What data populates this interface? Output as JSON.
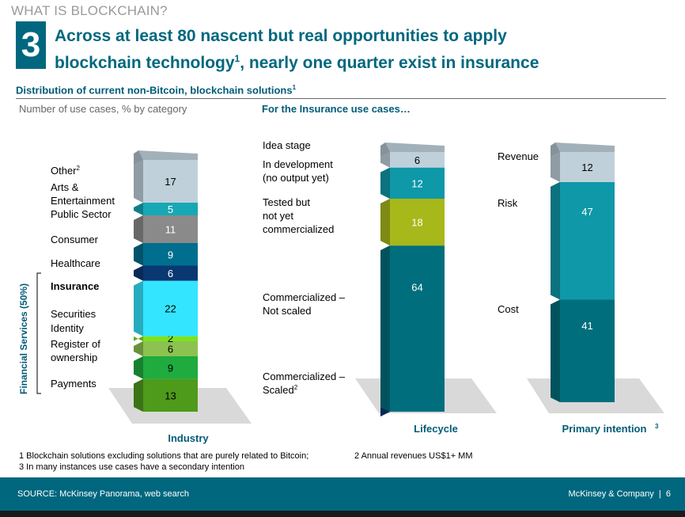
{
  "header": {
    "kicker": "WHAT IS BLOCKCHAIN?",
    "slide_number": "3",
    "title_line1": "Across at least 80 nascent but real opportunities to apply",
    "title_line2_pre": "blockchain technology",
    "title_line2_sup": "1",
    "title_line2_post": ", nearly one quarter exist in insurance"
  },
  "subtitle": {
    "text": "Distribution of current non-Bitcoin, blockchain solutions",
    "sup": "1"
  },
  "captions": {
    "left": "Number of use cases, % by category",
    "right": "For the Insurance use cases…"
  },
  "chart_data": [
    {
      "type": "bar",
      "stacked": true,
      "title": "Industry",
      "unit": "%",
      "series": [
        {
          "name": "Payments",
          "value": 13,
          "color": "#4e9a1b"
        },
        {
          "name": "Register of ownership",
          "value": 9,
          "color": "#1fab3e"
        },
        {
          "name": "Identity",
          "value": 6,
          "color": "#8cc24f"
        },
        {
          "name": "Securities",
          "value": 2,
          "color": "#7fe21f"
        },
        {
          "name": "Insurance",
          "value": 22,
          "color": "#33e5ff",
          "bold": true
        },
        {
          "name": "Healthcare",
          "value": 6,
          "color": "#0a3872"
        },
        {
          "name": "Consumer",
          "value": 9,
          "color": "#006e8e"
        },
        {
          "name": "Public Sector",
          "value": 11,
          "color": "#8a8a8a"
        },
        {
          "name": "Arts & Entertainment",
          "value": 5,
          "color": "#16a8b4"
        },
        {
          "name": "Other",
          "name_sup": "2",
          "value": 17,
          "color": "#bfd0da"
        }
      ],
      "left_labels": [
        {
          "lines": [
            "Other"
          ],
          "sup": "2"
        },
        {
          "lines": [
            "Arts &",
            "Entertainment"
          ]
        },
        {
          "lines": [
            "Public Sector"
          ]
        },
        {
          "lines": [
            "Consumer"
          ]
        },
        {
          "lines": [
            "Healthcare"
          ]
        },
        {
          "lines": [
            "Insurance"
          ],
          "bold": true
        },
        {
          "lines": [
            "Securities"
          ]
        },
        {
          "lines": [
            "Identity"
          ]
        },
        {
          "lines": [
            "Register of",
            "ownership"
          ]
        },
        {
          "lines": [
            "Payments"
          ]
        }
      ],
      "bracket_label": "Financial Services (50%)"
    },
    {
      "type": "bar",
      "stacked": true,
      "title": "Lifecycle",
      "unit": "%",
      "series": [
        {
          "name": "Commercialized – Scaled",
          "value": 0,
          "color": "#0a3872"
        },
        {
          "name": "Commercialized – Not scaled",
          "value": 64,
          "color": "#006e7c"
        },
        {
          "name": "Tested but not yet commercialized",
          "value": 18,
          "color": "#a6b81a"
        },
        {
          "name": "In development (no output yet)",
          "value": 12,
          "color": "#0f98a8"
        },
        {
          "name": "Idea stage",
          "value": 6,
          "color": "#bfd0da"
        }
      ],
      "left_labels": [
        {
          "lines": [
            "Idea stage"
          ]
        },
        {
          "lines": [
            "In development",
            "(no output yet)"
          ]
        },
        {
          "lines": [
            "Tested but",
            "not yet",
            "commercialized"
          ]
        },
        {
          "lines": [
            "Commercialized –",
            "Not scaled"
          ]
        },
        {
          "lines": [
            "Commercialized –",
            "Scaled"
          ],
          "sup": "2"
        }
      ]
    },
    {
      "type": "bar",
      "stacked": true,
      "title": "Primary intention",
      "title_sup": "3",
      "unit": "%",
      "series": [
        {
          "name": "Cost",
          "value": 41,
          "color": "#006e7c"
        },
        {
          "name": "Risk",
          "value": 47,
          "color": "#0f98a8"
        },
        {
          "name": "Revenue",
          "value": 12,
          "color": "#bfd0da"
        }
      ],
      "left_labels": [
        {
          "lines": [
            "Revenue"
          ]
        },
        {
          "lines": [
            "Risk"
          ]
        },
        {
          "lines": [
            "Cost"
          ]
        }
      ]
    }
  ],
  "footnotes": {
    "note1": "1 Blockchain solutions excluding solutions that are purely related to Bitcoin;",
    "note2": "2 Annual revenues US$1+ MM",
    "note3": "3 In many instances use cases have a secondary intention"
  },
  "footer": {
    "source": "SOURCE: McKinsey Panorama, web search",
    "brand": "McKinsey & Company",
    "separator": "|",
    "page": "6"
  },
  "colors": {
    "brand": "#00677f",
    "title": "#00677f",
    "subtitle": "#005b78",
    "floor": "#d9d9d9",
    "footer_bg": "#00677f"
  }
}
